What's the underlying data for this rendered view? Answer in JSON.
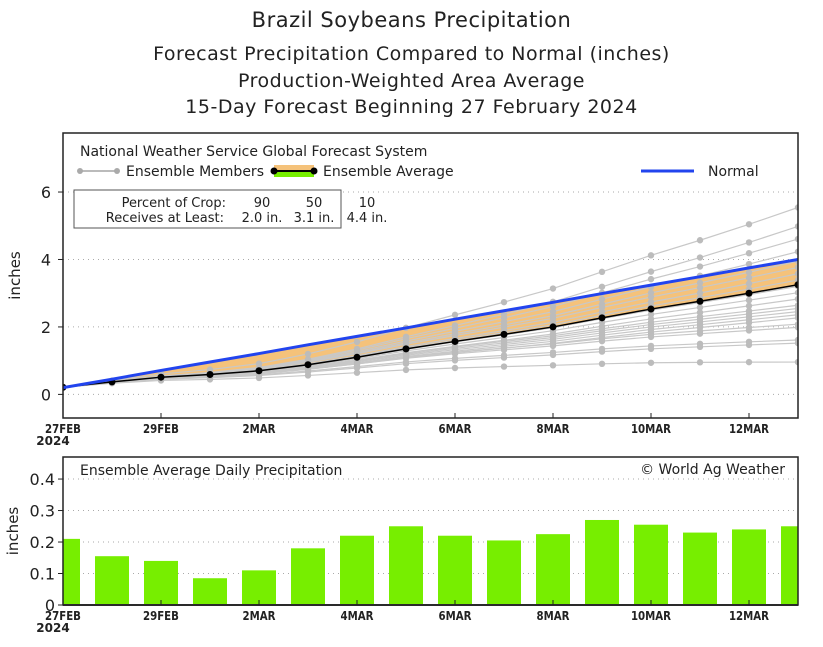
{
  "titles": [
    "Brazil Soybeans Precipitation",
    "Forecast Precipitation Compared to Normal (inches)",
    "Production-Weighted Area Average",
    "15-Day Forecast Beginning 27 February 2024"
  ],
  "chart_data": [
    {
      "type": "line",
      "source_label": "National Weather Service Global Forecast System",
      "ylabel": "inches",
      "ylim": [
        -0.7,
        7.75
      ],
      "yticks": [
        0,
        2,
        4,
        6
      ],
      "x": [
        "27FEB",
        "28FEB",
        "29FEB",
        "1MAR",
        "2MAR",
        "3MAR",
        "4MAR",
        "5MAR",
        "6MAR",
        "7MAR",
        "8MAR",
        "9MAR",
        "10MAR",
        "11MAR",
        "12MAR",
        "13MAR"
      ],
      "xtick_labels": [
        "27FEB",
        "29FEB",
        "2MAR",
        "4MAR",
        "6MAR",
        "8MAR",
        "10MAR",
        "12MAR"
      ],
      "xtick_year": "2024",
      "grid": "horizontal dotted",
      "legend": {
        "members": "Ensemble Members",
        "average": "Ensemble Average",
        "normal": "Normal"
      },
      "series": [
        {
          "name": "Ensemble Average",
          "color": "#000000",
          "values": [
            0.21,
            0.37,
            0.51,
            0.59,
            0.7,
            0.88,
            1.1,
            1.35,
            1.57,
            1.78,
            2.0,
            2.27,
            2.53,
            2.76,
            3.0,
            3.25
          ]
        },
        {
          "name": "Normal",
          "color": "#2244ee",
          "values": [
            0.2,
            0.45,
            0.71,
            0.96,
            1.21,
            1.47,
            1.72,
            1.97,
            2.23,
            2.48,
            2.73,
            2.99,
            3.24,
            3.49,
            3.75,
            4.0
          ]
        }
      ],
      "ensemble_member_totals": [
        0.8,
        1.4,
        1.5,
        1.9,
        2.0,
        2.2,
        2.3,
        2.4,
        2.5,
        2.6,
        2.8,
        3.0,
        3.2,
        3.4,
        3.6,
        3.8,
        4.0,
        4.3,
        4.7,
        5.1,
        5.7
      ],
      "band_color": "#f5c27a",
      "crop_table": {
        "row1_label": "Percent of Crop:",
        "row1": [
          "90",
          "50",
          "10"
        ],
        "row2_label": "Receives at Least:",
        "row2": [
          "2.0 in.",
          "3.1 in.",
          "4.4 in."
        ]
      }
    },
    {
      "type": "bar",
      "title": "Ensemble Average Daily Precipitation",
      "credit": "© World Ag Weather",
      "ylabel": "inches",
      "ylim": [
        0,
        0.47
      ],
      "yticks": [
        "0",
        "0.1",
        "0.2",
        "0.3",
        "0.4"
      ],
      "categories": [
        "27FEB",
        "28FEB",
        "29FEB",
        "1MAR",
        "2MAR",
        "3MAR",
        "4MAR",
        "5MAR",
        "6MAR",
        "7MAR",
        "8MAR",
        "9MAR",
        "10MAR",
        "11MAR",
        "12MAR",
        "13MAR"
      ],
      "values": [
        0.21,
        0.155,
        0.14,
        0.085,
        0.11,
        0.18,
        0.22,
        0.25,
        0.22,
        0.205,
        0.225,
        0.27,
        0.255,
        0.23,
        0.24,
        0.25
      ],
      "bar_color": "#77ee00"
    }
  ]
}
